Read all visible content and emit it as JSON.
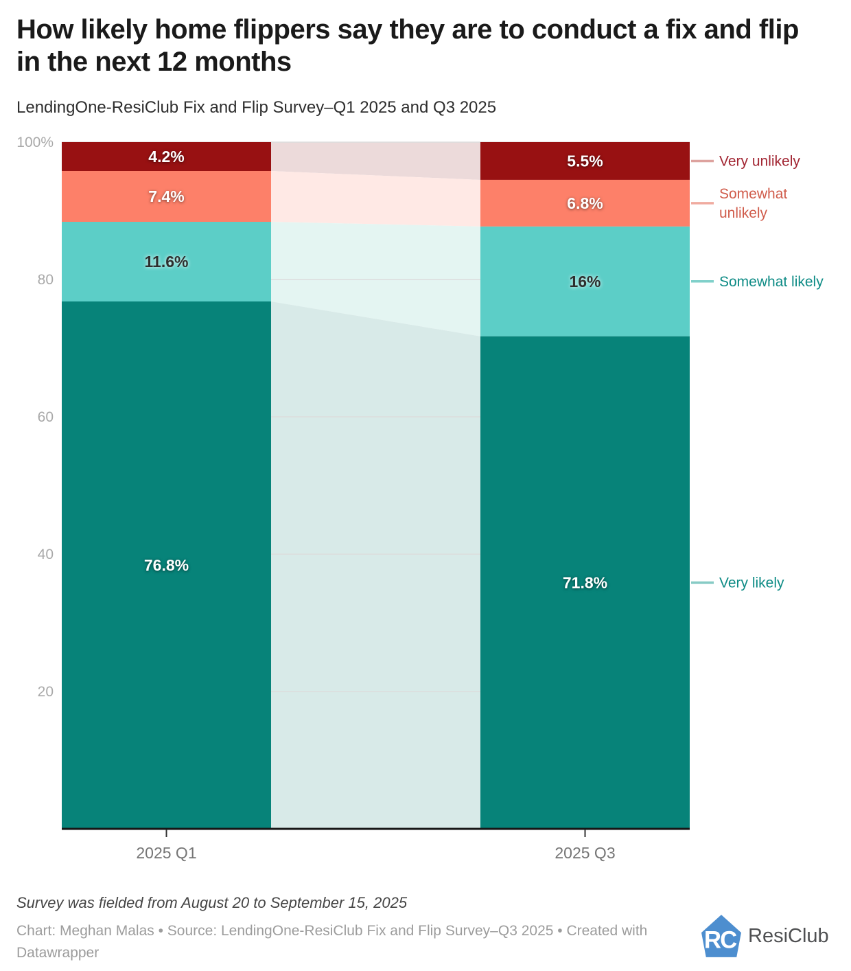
{
  "chart_data": {
    "type": "bar",
    "stacked": true,
    "title": "How likely home flippers say they are to conduct a fix and flip in the next 12 months",
    "subtitle": "LendingOne-ResiClub Fix and Flip Survey–Q1 2025 and Q3 2025",
    "categories": [
      "2025 Q1",
      "2025 Q3"
    ],
    "series": [
      {
        "name": "Very unlikely",
        "values": [
          4.2,
          5.5
        ],
        "value_labels": [
          "4.2%",
          "5.5%"
        ],
        "bar_color": "#981112",
        "connector_color": "#ecdada",
        "legend_line_color": "#dda29e",
        "legend_text_color": "#a22633",
        "legend_lines": [
          "Very unlikely"
        ],
        "label_style": "light"
      },
      {
        "name": "Somewhat unlikely",
        "values": [
          7.4,
          6.8
        ],
        "value_labels": [
          "7.4%",
          "6.8%"
        ],
        "bar_color": "#fd8069",
        "connector_color": "#ffe9e5",
        "legend_line_color": "#f0aba0",
        "legend_text_color": "#d05c4b",
        "legend_lines": [
          "Somewhat",
          "unlikely"
        ],
        "label_style": "light"
      },
      {
        "name": "Somewhat likely",
        "values": [
          11.6,
          16
        ],
        "value_labels": [
          "11.6%",
          "16%"
        ],
        "bar_color": "#5ccec7",
        "connector_color": "#e4f5f2",
        "legend_line_color": "#7fd0ca",
        "legend_text_color": "#0d8b85",
        "legend_lines": [
          "Somewhat likely"
        ],
        "label_style": "dark"
      },
      {
        "name": "Very likely",
        "values": [
          76.8,
          71.8
        ],
        "value_labels": [
          "76.8%",
          "71.8%"
        ],
        "bar_color": "#078379",
        "connector_color": "#d8eae8",
        "legend_line_color": "#87cbc5",
        "legend_text_color": "#0d8b85",
        "legend_lines": [
          "Very likely"
        ],
        "label_style": "light"
      }
    ],
    "ylim": [
      0,
      100
    ],
    "yticks": [
      {
        "value": 100,
        "label": "100%"
      },
      {
        "value": 80,
        "label": "80"
      },
      {
        "value": 60,
        "label": "60"
      },
      {
        "value": 40,
        "label": "40"
      },
      {
        "value": 20,
        "label": "20"
      }
    ],
    "grid": true,
    "legend_position": "right"
  },
  "footer": {
    "note": "Survey was fielded from August 20 to September 15, 2025",
    "credit": "Chart: Meghan Malas • Source: LendingOne-ResiClub Fix and Flip Survey–Q3 2025 • Created with Datawrapper",
    "logo_text": "ResiClub",
    "logo_color": "#4d8ecf"
  },
  "colors": {
    "grid": "#dcdcdc",
    "axis_line": "#161616",
    "tick_mark": "#333333"
  }
}
